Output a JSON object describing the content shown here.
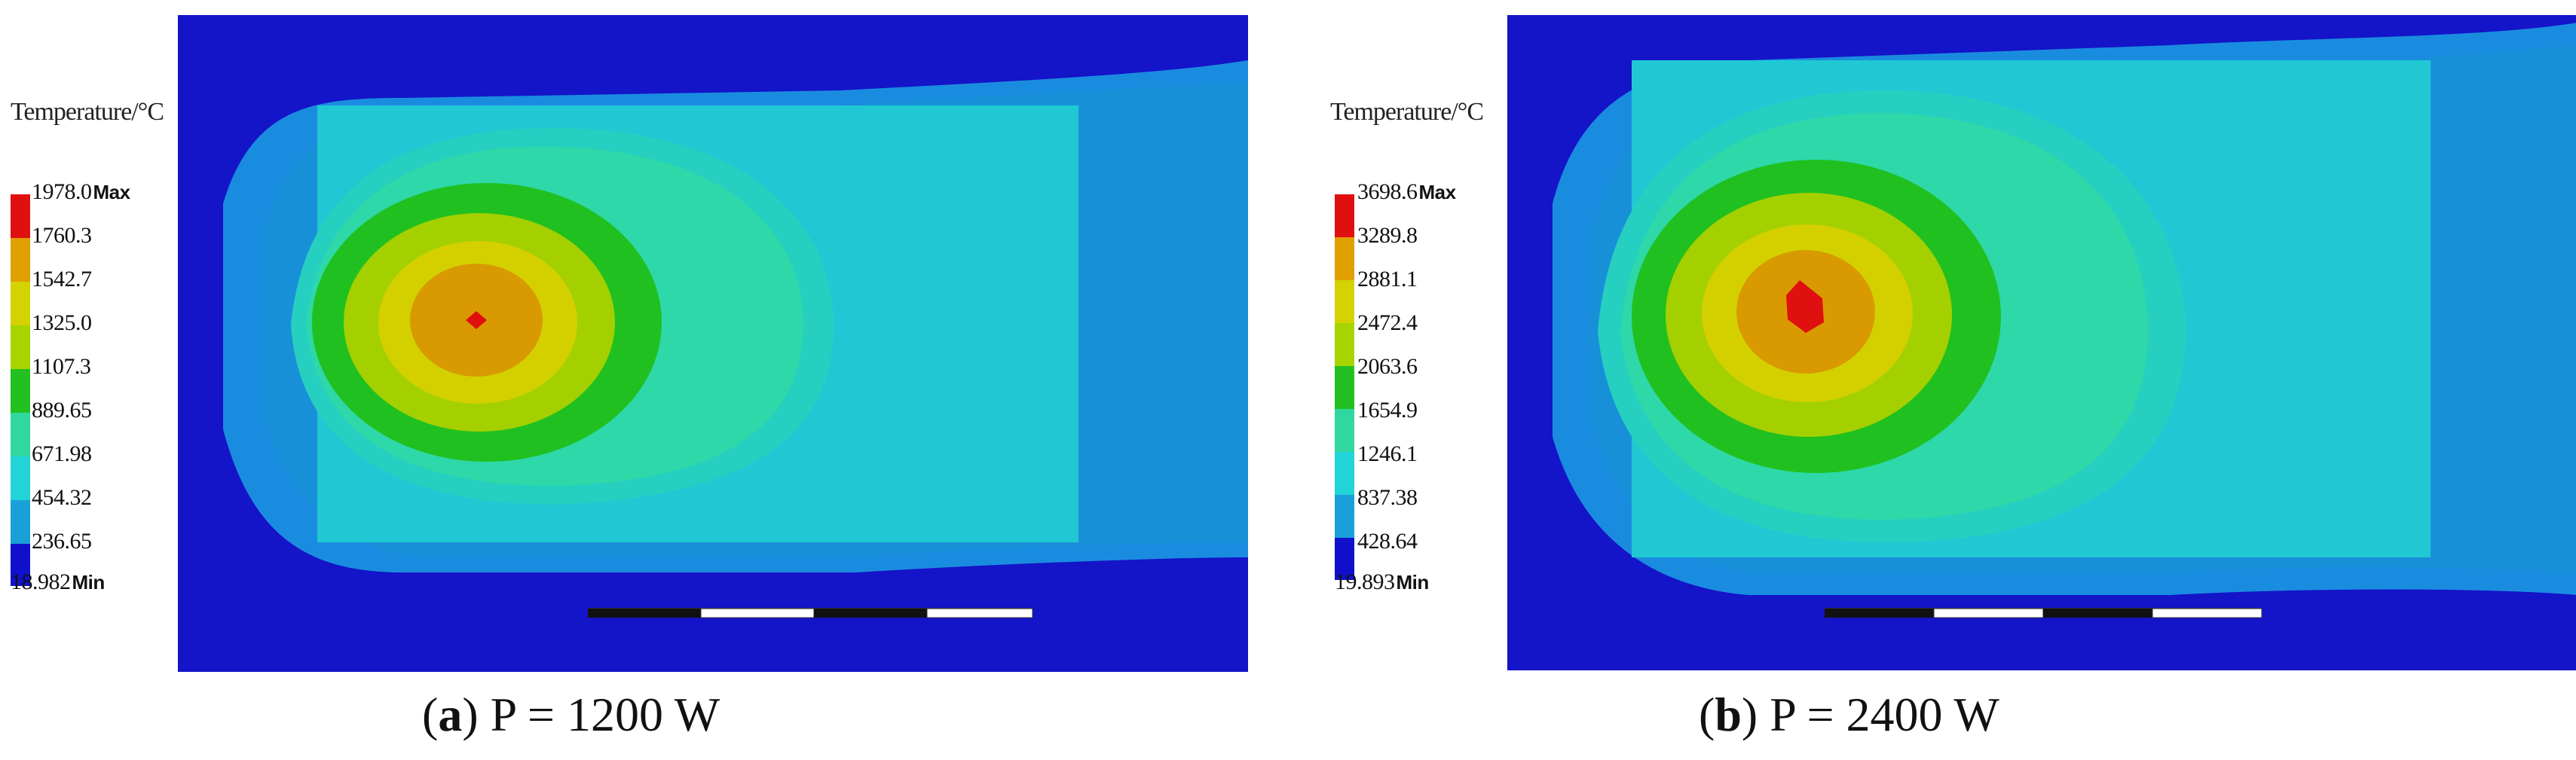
{
  "panels": [
    {
      "id": "a",
      "legend_title": "Temperature/°C",
      "legend_values": [
        "1978.0",
        "1760.3",
        "1542.7",
        "1325.0",
        "1107.3",
        "889.65",
        "671.98",
        "454.32",
        "236.65",
        "18.982"
      ],
      "max_tag": "Max",
      "min_tag": "Min",
      "caption_letter": "a",
      "caption_text": " P = 1200 W"
    },
    {
      "id": "b",
      "legend_title": "Temperature/°C",
      "legend_values": [
        "3698.6",
        "3289.8",
        "2881.1",
        "2472.4",
        "2063.6",
        "1654.9",
        "1246.1",
        "837.38",
        "428.64",
        "19.893"
      ],
      "max_tag": "Max",
      "min_tag": "Min",
      "caption_letter": "b",
      "caption_text": " P = 2400 W"
    }
  ],
  "colors": {
    "band_9_max": "#e01010",
    "band_8": "#e0a000",
    "band_7": "#d4d200",
    "band_6": "#a8d400",
    "band_5": "#22c020",
    "band_4": "#30d8a0",
    "band_3": "#20d4d8",
    "band_2": "#1aa0d8",
    "band_1": "#1858e0",
    "band_0_min": "#1010cc",
    "background_field": "#1618c8"
  }
}
